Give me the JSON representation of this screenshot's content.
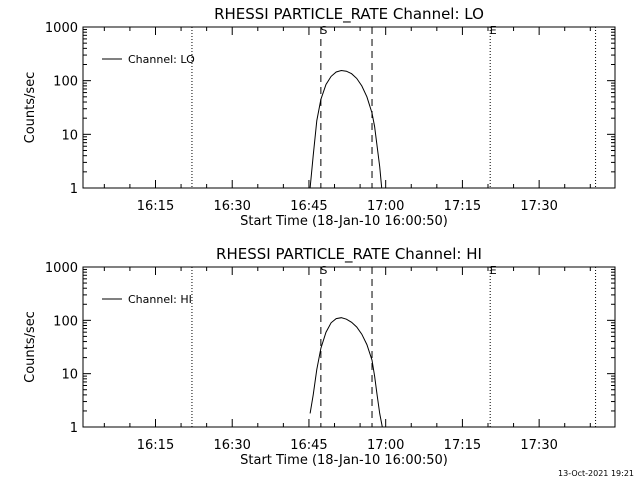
{
  "footer_timestamp": "13-Oct-2021 19:21",
  "chart_data": [
    {
      "type": "line",
      "title": "RHESSI PARTICLE_RATE Channel: LO",
      "xlabel": "Start Time (18-Jan-10 16:00:50)",
      "ylabel": "Counts/sec",
      "y_scale": "log",
      "ylim": [
        1,
        1000
      ],
      "y_ticks": [
        1,
        10,
        100,
        1000
      ],
      "y_tick_labels": [
        "1",
        "10",
        "100",
        "1000"
      ],
      "x_unit": "minutes since 16:00:50",
      "xlim": [
        0,
        104
      ],
      "x_ticks": [
        14.17,
        29.17,
        44.17,
        59.17,
        74.17,
        89.17
      ],
      "x_tick_labels": [
        "16:15",
        "16:30",
        "16:45",
        "17:00",
        "17:15",
        "17:30"
      ],
      "legend": {
        "placement": "top-left",
        "entries": [
          "Channel: LO"
        ]
      },
      "markers": [
        {
          "label": "S",
          "x": 46.5,
          "style": "dashed"
        },
        {
          "label": "",
          "x": 56.5,
          "style": "dashed"
        },
        {
          "label": "E",
          "x": 79.6,
          "style": "dotted"
        }
      ],
      "dotted_lines": [
        {
          "x": 21.3
        },
        {
          "x": 100.2
        }
      ],
      "series": [
        {
          "name": "Channel: LO",
          "x": [
            44.4,
            45.0,
            45.7,
            46.5,
            47.5,
            48.5,
            49.5,
            50.5,
            51.5,
            52.5,
            53.5,
            54.5,
            55.5,
            56.5,
            57.0,
            57.5,
            58.0,
            58.4
          ],
          "y": [
            1,
            4,
            18,
            45,
            85,
            120,
            145,
            155,
            150,
            135,
            110,
            80,
            50,
            25,
            14,
            6,
            2.5,
            1
          ]
        }
      ]
    },
    {
      "type": "line",
      "title": "RHESSI PARTICLE_RATE Channel: HI",
      "xlabel": "Start Time (18-Jan-10 16:00:50)",
      "ylabel": "Counts/sec",
      "y_scale": "log",
      "ylim": [
        1,
        1000
      ],
      "y_ticks": [
        1,
        10,
        100,
        1000
      ],
      "y_tick_labels": [
        "1",
        "10",
        "100",
        "1000"
      ],
      "x_unit": "minutes since 16:00:50",
      "xlim": [
        0,
        104
      ],
      "x_ticks": [
        14.17,
        29.17,
        44.17,
        59.17,
        74.17,
        89.17
      ],
      "x_tick_labels": [
        "16:15",
        "16:30",
        "16:45",
        "17:00",
        "17:15",
        "17:30"
      ],
      "legend": {
        "placement": "top-left",
        "entries": [
          "Channel: HI"
        ]
      },
      "markers": [
        {
          "label": "S",
          "x": 46.5,
          "style": "dashed"
        },
        {
          "label": "",
          "x": 56.5,
          "style": "dashed"
        },
        {
          "label": "E",
          "x": 79.6,
          "style": "dotted"
        }
      ],
      "dotted_lines": [
        {
          "x": 21.3
        },
        {
          "x": 100.2
        }
      ],
      "series": [
        {
          "name": "Channel: HI",
          "x": [
            44.4,
            45.0,
            45.7,
            46.5,
            47.5,
            48.5,
            49.5,
            50.5,
            51.5,
            52.5,
            53.5,
            54.5,
            55.5,
            56.5,
            57.0,
            57.5,
            58.0,
            58.5
          ],
          "y": [
            1.8,
            4,
            12,
            30,
            60,
            90,
            108,
            112,
            105,
            92,
            75,
            55,
            35,
            18,
            9,
            4,
            1.8,
            1
          ]
        }
      ]
    }
  ]
}
